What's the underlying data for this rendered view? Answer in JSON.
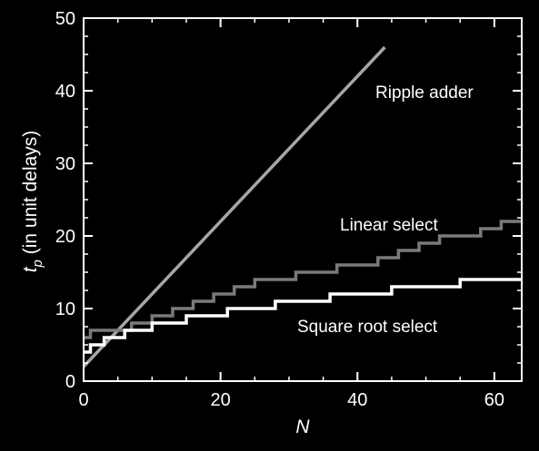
{
  "chart_data": {
    "type": "line",
    "xlabel": "N",
    "ylabel_main": "t",
    "ylabel_sub": "p",
    "ylabel_rest": " (in unit delays)",
    "xlim": [
      0,
      64
    ],
    "ylim": [
      0,
      50
    ],
    "xticks": [
      0,
      20,
      40,
      60
    ],
    "yticks": [
      0,
      10,
      20,
      30,
      40,
      50
    ],
    "grid": false,
    "background": "#000000",
    "axis_color": "#ffffff",
    "series": [
      {
        "name": "Ripple adder",
        "color": "#a6a6a6",
        "style": "line",
        "x": [
          0,
          44
        ],
        "y": [
          2,
          46
        ]
      },
      {
        "name": "Linear select",
        "color": "#7a7a7a",
        "style": "step",
        "x": [
          0,
          1,
          4,
          7,
          10,
          13,
          16,
          19,
          22,
          25,
          28,
          31,
          34,
          37,
          40,
          43,
          46,
          49,
          52,
          55,
          58,
          61,
          64
        ],
        "y": [
          6,
          7,
          7,
          8,
          9,
          10,
          11,
          12,
          13,
          14,
          14,
          15,
          15,
          16,
          16,
          17,
          18,
          19,
          20,
          20,
          21,
          22,
          22
        ]
      },
      {
        "name": "Square root select",
        "color": "#ffffff",
        "style": "step",
        "x": [
          0,
          1,
          3,
          6,
          10,
          15,
          21,
          28,
          36,
          45,
          55,
          64
        ],
        "y": [
          4,
          5,
          6,
          7,
          8,
          9,
          10,
          11,
          12,
          13,
          14,
          14
        ]
      }
    ],
    "annotations": [
      {
        "text": "Ripple adder",
        "series": "Ripple adder"
      },
      {
        "text": "Linear select",
        "series": "Linear select"
      },
      {
        "text": "Square root select",
        "series": "Square root select"
      }
    ]
  }
}
